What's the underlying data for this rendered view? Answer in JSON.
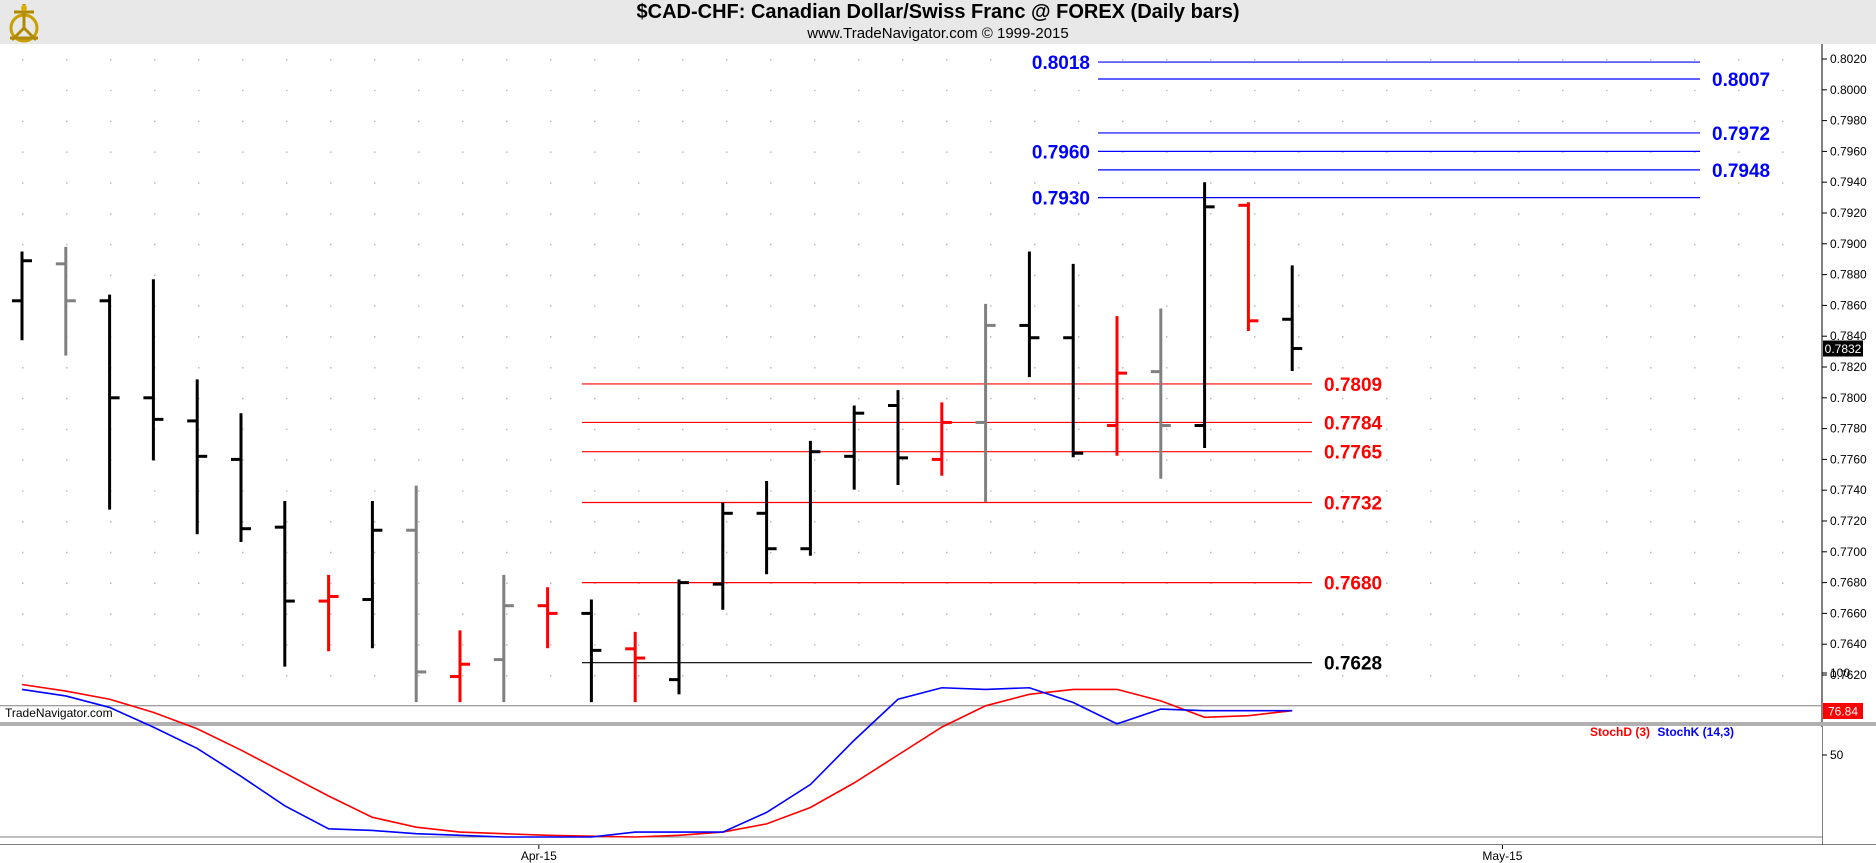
{
  "header": {
    "title": "$CAD-CHF:  Canadian Dollar/Swiss Franc @ FOREX  (Daily bars)",
    "subtitle": "www.TradeNavigator.com © 1999-2015",
    "logo_icon": "sextant-logo-icon"
  },
  "colors": {
    "up_bar": "#000000",
    "down_bar": "#ff0000",
    "neutral_bar": "#808080",
    "resistance": "#0000ff",
    "support": "#ff0000",
    "base": "#000000",
    "stoch_d": "#ff0000",
    "stoch_k": "#0000ff",
    "grid": "#bbbbbb"
  },
  "chart_data": [
    {
      "type": "ohlc",
      "title": "$CAD-CHF:  Canadian Dollar/Swiss Franc @ FOREX  (Daily bars)",
      "watermark": "TradeNavigator.com",
      "ylim": [
        0.7605,
        0.8028
      ],
      "y_ticks": [
        "0.8020",
        "0.8000",
        "0.7980",
        "0.7960",
        "0.7940",
        "0.7920",
        "0.7900",
        "0.7880",
        "0.7860",
        "0.7840",
        "0.7820",
        "0.7800",
        "0.7780",
        "0.7760",
        "0.7740",
        "0.7720",
        "0.7700",
        "0.7680",
        "0.7660",
        "0.7640",
        "0.7620"
      ],
      "x_labels": [
        {
          "label": "Apr-15",
          "bar_index": 11.8
        },
        {
          "label": "May-15",
          "bar_index": 33.8
        }
      ],
      "last_price": "0.7832",
      "bars": [
        {
          "o": 0.7863,
          "h": 0.7895,
          "l": 0.784,
          "c": 0.7889,
          "color": "black"
        },
        {
          "o": 0.7887,
          "h": 0.7898,
          "l": 0.783,
          "c": 0.7863,
          "color": "gray"
        },
        {
          "o": 0.7863,
          "h": 0.7867,
          "l": 0.773,
          "c": 0.78,
          "color": "black"
        },
        {
          "o": 0.78,
          "h": 0.7877,
          "l": 0.7762,
          "c": 0.7786,
          "color": "black"
        },
        {
          "o": 0.7785,
          "h": 0.7812,
          "l": 0.7714,
          "c": 0.7762,
          "color": "black"
        },
        {
          "o": 0.776,
          "h": 0.779,
          "l": 0.7709,
          "c": 0.7715,
          "color": "black"
        },
        {
          "o": 0.7716,
          "h": 0.7733,
          "l": 0.7628,
          "c": 0.7668,
          "color": "black"
        },
        {
          "o": 0.7668,
          "h": 0.7685,
          "l": 0.7638,
          "c": 0.7671,
          "color": "red"
        },
        {
          "o": 0.7669,
          "h": 0.7733,
          "l": 0.764,
          "c": 0.7714,
          "color": "black"
        },
        {
          "o": 0.7714,
          "h": 0.7743,
          "l": 0.7605,
          "c": 0.7622,
          "color": "gray"
        },
        {
          "o": 0.7619,
          "h": 0.7649,
          "l": 0.7605,
          "c": 0.7627,
          "color": "red"
        },
        {
          "o": 0.763,
          "h": 0.7685,
          "l": 0.7605,
          "c": 0.7665,
          "color": "gray"
        },
        {
          "o": 0.7665,
          "h": 0.7677,
          "l": 0.764,
          "c": 0.766,
          "color": "red"
        },
        {
          "o": 0.766,
          "h": 0.7669,
          "l": 0.7605,
          "c": 0.7636,
          "color": "black"
        },
        {
          "o": 0.7637,
          "h": 0.7648,
          "l": 0.7605,
          "c": 0.7631,
          "color": "red"
        },
        {
          "o": 0.7617,
          "h": 0.7682,
          "l": 0.761,
          "c": 0.768,
          "color": "black"
        },
        {
          "o": 0.7679,
          "h": 0.7732,
          "l": 0.7665,
          "c": 0.7725,
          "color": "black"
        },
        {
          "o": 0.7725,
          "h": 0.7746,
          "l": 0.7688,
          "c": 0.7702,
          "color": "black"
        },
        {
          "o": 0.7702,
          "h": 0.7772,
          "l": 0.77,
          "c": 0.7765,
          "color": "black"
        },
        {
          "o": 0.7762,
          "h": 0.7795,
          "l": 0.7743,
          "c": 0.779,
          "color": "black"
        },
        {
          "o": 0.7795,
          "h": 0.7805,
          "l": 0.7746,
          "c": 0.7761,
          "color": "black"
        },
        {
          "o": 0.776,
          "h": 0.7797,
          "l": 0.7752,
          "c": 0.7784,
          "color": "red"
        },
        {
          "o": 0.7784,
          "h": 0.7861,
          "l": 0.7735,
          "c": 0.7847,
          "color": "gray"
        },
        {
          "o": 0.7847,
          "h": 0.7895,
          "l": 0.7816,
          "c": 0.7839,
          "color": "black"
        },
        {
          "o": 0.7839,
          "h": 0.7887,
          "l": 0.7764,
          "c": 0.7764,
          "color": "black"
        },
        {
          "o": 0.7782,
          "h": 0.7853,
          "l": 0.7765,
          "c": 0.7816,
          "color": "red"
        },
        {
          "o": 0.7817,
          "h": 0.7858,
          "l": 0.775,
          "c": 0.7782,
          "color": "gray"
        },
        {
          "o": 0.7782,
          "h": 0.794,
          "l": 0.777,
          "c": 0.7924,
          "color": "black"
        },
        {
          "o": 0.7925,
          "h": 0.7927,
          "l": 0.7846,
          "c": 0.785,
          "color": "red"
        },
        {
          "o": 0.7851,
          "h": 0.7886,
          "l": 0.782,
          "c": 0.7832,
          "color": "black"
        }
      ],
      "levels": [
        {
          "value": 0.8018,
          "label": "0.8018",
          "kind": "resistance",
          "label_side": "left"
        },
        {
          "value": 0.8007,
          "label": "0.8007",
          "kind": "resistance",
          "label_side": "right"
        },
        {
          "value": 0.7972,
          "label": "0.7972",
          "kind": "resistance",
          "label_side": "right"
        },
        {
          "value": 0.796,
          "label": "0.7960",
          "kind": "resistance",
          "label_side": "left"
        },
        {
          "value": 0.7948,
          "label": "0.7948",
          "kind": "resistance",
          "label_side": "right"
        },
        {
          "value": 0.793,
          "label": "0.7930",
          "kind": "resistance",
          "label_side": "left"
        },
        {
          "value": 0.7809,
          "label": "0.7809",
          "kind": "support",
          "label_side": "right"
        },
        {
          "value": 0.7784,
          "label": "0.7784",
          "kind": "support",
          "label_side": "right"
        },
        {
          "value": 0.7765,
          "label": "0.7765",
          "kind": "support",
          "label_side": "right"
        },
        {
          "value": 0.7732,
          "label": "0.7732",
          "kind": "support",
          "label_side": "right"
        },
        {
          "value": 0.768,
          "label": "0.7680",
          "kind": "support",
          "label_side": "right"
        },
        {
          "value": 0.7628,
          "label": "0.7628",
          "kind": "base",
          "label_side": "right"
        }
      ]
    },
    {
      "type": "line",
      "ylim": [
        -3,
        108
      ],
      "y_ticks": [
        "100",
        "50"
      ],
      "reference_lines": [
        80,
        0
      ],
      "last_value": "76.84",
      "series": [
        {
          "name": "StochD (3)",
          "color": "#ff0000",
          "values": [
            93,
            89,
            84,
            76,
            66,
            53,
            39,
            25,
            12,
            6,
            3,
            2,
            1,
            0.5,
            0,
            1,
            3,
            8,
            18,
            33,
            50,
            67,
            80,
            87,
            90,
            90,
            83,
            73,
            74,
            77
          ]
        },
        {
          "name": "StochK (14,3)",
          "color": "#0000ff",
          "values": [
            90,
            86,
            79,
            67,
            54,
            37,
            19,
            5,
            4,
            2,
            1,
            0,
            0,
            0,
            3,
            3,
            3,
            15,
            32,
            59,
            84,
            91,
            90,
            91,
            82,
            69,
            78,
            77,
            77,
            77
          ]
        }
      ]
    }
  ]
}
